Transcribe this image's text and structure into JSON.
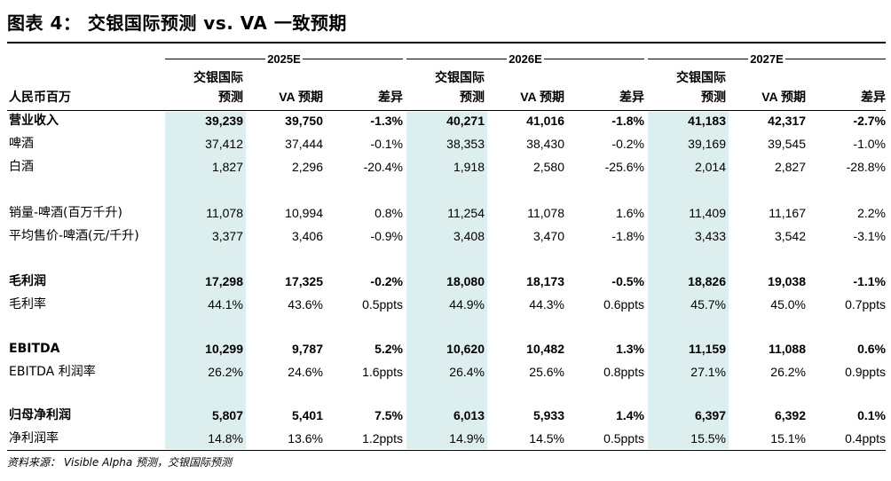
{
  "title": "图表 4： 交银国际预测 vs. VA 一致预期",
  "periods": [
    "2025E",
    "2026E",
    "2027E"
  ],
  "header": {
    "row_label": "人民币百万",
    "col_forecast_l1": "交银国际",
    "col_forecast_l2": "预测",
    "col_va": "VA 预期",
    "col_diff": "差异"
  },
  "rows": [
    {
      "label": "营业收入",
      "bold": true,
      "values": [
        "39,239",
        "39,750",
        "-1.3%",
        "40,271",
        "41,016",
        "-1.8%",
        "41,183",
        "42,317",
        "-2.7%"
      ]
    },
    {
      "label": "啤酒",
      "bold": false,
      "values": [
        "37,412",
        "37,444",
        "-0.1%",
        "38,353",
        "38,430",
        "-0.2%",
        "39,169",
        "39,545",
        "-1.0%"
      ]
    },
    {
      "label": "白酒",
      "bold": false,
      "values": [
        "1,827",
        "2,296",
        "-20.4%",
        "1,918",
        "2,580",
        "-25.6%",
        "2,014",
        "2,827",
        "-28.8%"
      ]
    },
    {
      "label": "销量-啤酒(百万千升)",
      "bold": false,
      "values": [
        "11,078",
        "10,994",
        "0.8%",
        "11,254",
        "11,078",
        "1.6%",
        "11,409",
        "11,167",
        "2.2%"
      ]
    },
    {
      "label": "平均售价-啤酒(元/千升)",
      "bold": false,
      "values": [
        "3,377",
        "3,406",
        "-0.9%",
        "3,408",
        "3,470",
        "-1.8%",
        "3,433",
        "3,542",
        "-3.1%"
      ]
    },
    {
      "label": "毛利润",
      "bold": true,
      "values": [
        "17,298",
        "17,325",
        "-0.2%",
        "18,080",
        "18,173",
        "-0.5%",
        "18,826",
        "19,038",
        "-1.1%"
      ]
    },
    {
      "label": "毛利率",
      "bold": false,
      "values": [
        "44.1%",
        "43.6%",
        "0.5ppts",
        "44.9%",
        "44.3%",
        "0.6ppts",
        "45.7%",
        "45.0%",
        "0.7ppts"
      ]
    },
    {
      "label": "EBITDA",
      "bold": true,
      "values": [
        "10,299",
        "9,787",
        "5.2%",
        "10,620",
        "10,482",
        "1.3%",
        "11,159",
        "11,088",
        "0.6%"
      ]
    },
    {
      "label": "EBITDA 利润率",
      "bold": false,
      "values": [
        "26.2%",
        "24.6%",
        "1.6ppts",
        "26.4%",
        "25.6%",
        "0.8ppts",
        "27.1%",
        "26.2%",
        "0.9ppts"
      ]
    },
    {
      "label": "归母净利润",
      "bold": true,
      "values": [
        "5,807",
        "5,401",
        "7.5%",
        "6,013",
        "5,933",
        "1.4%",
        "6,397",
        "6,392",
        "0.1%"
      ]
    },
    {
      "label": "净利润率",
      "bold": false,
      "values": [
        "14.8%",
        "13.6%",
        "1.2ppts",
        "14.9%",
        "14.5%",
        "0.5ppts",
        "15.5%",
        "15.1%",
        "0.4ppts"
      ]
    }
  ],
  "source": "资料来源： Visible Alpha 预测，交银国际预测"
}
